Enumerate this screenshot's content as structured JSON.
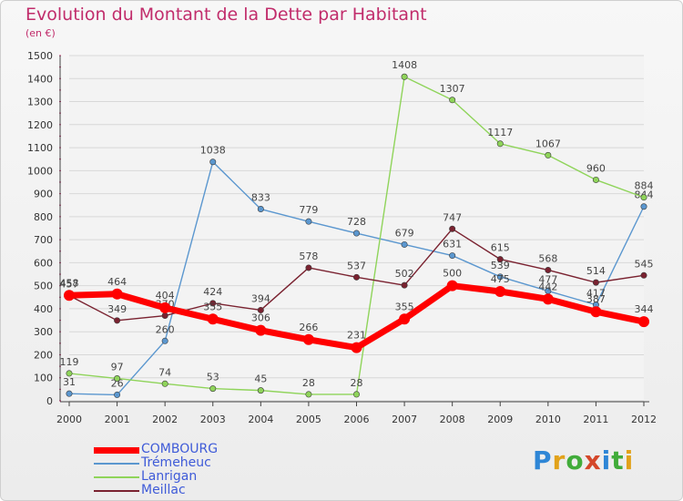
{
  "title": "Evolution du Montant de la Dette par Habitant",
  "unit_label": "(en €)",
  "logo": {
    "text": "Proxiti",
    "letter_colors": [
      "#2e86d6",
      "#e2a21a",
      "#41ac3a",
      "#d4472a",
      "#2e86d6",
      "#41ac3a",
      "#e2a21a"
    ]
  },
  "chart_data": {
    "type": "line",
    "x": [
      "2000",
      "2001",
      "2002",
      "2003",
      "2004",
      "2005",
      "2006",
      "2007",
      "2008",
      "2009",
      "2010",
      "2011",
      "2012"
    ],
    "ylim": [
      0,
      1500
    ],
    "yticks": [
      0,
      100,
      200,
      300,
      400,
      500,
      600,
      700,
      800,
      900,
      1000,
      1100,
      1200,
      1300,
      1400,
      1500
    ],
    "grid": "horizontal",
    "legend_position": "bottom-left",
    "series": [
      {
        "name": "Trémeheuc",
        "color": "#5b97cf",
        "values": [
          31,
          26,
          260,
          1038,
          833,
          779,
          728,
          679,
          631,
          539,
          477,
          417,
          844
        ],
        "labels": [
          "31",
          "26",
          "260",
          "1038",
          "833",
          "779",
          "728",
          "679",
          "631",
          "539",
          "477",
          "417",
          "844"
        ]
      },
      {
        "name": "Lanrigan",
        "color": "#8fd45a",
        "values": [
          119,
          97,
          74,
          53,
          45,
          28,
          28,
          1408,
          1307,
          1117,
          1067,
          960,
          884
        ],
        "labels": [
          "119",
          "97",
          "74",
          "53",
          "45",
          "28",
          "28",
          "1408",
          "1307",
          "1117",
          "1067",
          "960",
          "884"
        ]
      },
      {
        "name": "Meillac",
        "color": "#7a2230",
        "values": [
          457,
          349,
          370,
          424,
          394,
          578,
          537,
          502,
          747,
          615,
          568,
          514,
          545
        ],
        "labels": [
          "457",
          "349",
          "370",
          "424",
          "394",
          "578",
          "537",
          "502",
          "747",
          "615",
          "568",
          "514",
          "545"
        ]
      },
      {
        "name": "COMBOURG",
        "color": "#ff0000",
        "values": [
          458,
          464,
          404,
          355,
          306,
          266,
          231,
          355,
          500,
          475,
          442,
          387,
          344
        ],
        "labels": [
          "458",
          "464",
          "404",
          "355",
          "306",
          "266",
          "231",
          "355",
          "500",
          "475",
          "442",
          "387",
          "344"
        ]
      }
    ],
    "legend_order": [
      "COMBOURG",
      "Trémeheuc",
      "Lanrigan",
      "Meillac"
    ]
  }
}
